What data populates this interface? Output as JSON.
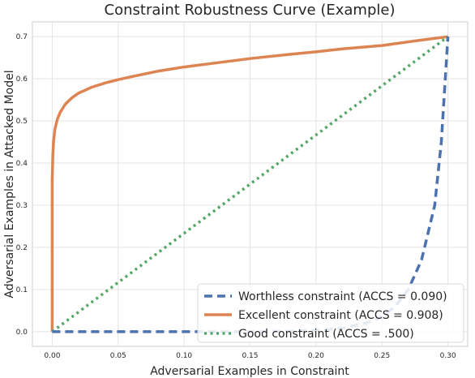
{
  "chart_data": {
    "type": "line",
    "title": "Constraint Robustness Curve (Example)",
    "xlabel": "Adversarial Examples in Constraint",
    "ylabel": "Adversarial Examples in Attacked Model",
    "xlim": [
      -0.015,
      0.315
    ],
    "ylim": [
      -0.035,
      0.735
    ],
    "x_ticks": [
      0.0,
      0.05,
      0.1,
      0.15,
      0.2,
      0.25,
      0.3
    ],
    "x_tick_labels": [
      "0.00",
      "0.05",
      "0.10",
      "0.15",
      "0.20",
      "0.25",
      "0.30"
    ],
    "y_ticks": [
      0.0,
      0.1,
      0.2,
      0.3,
      0.4,
      0.5,
      0.6,
      0.7
    ],
    "y_tick_labels": [
      "0.0",
      "0.1",
      "0.2",
      "0.3",
      "0.4",
      "0.5",
      "0.6",
      "0.7"
    ],
    "grid": true,
    "legend_position": "lower-right",
    "series": [
      {
        "name": "Worthless constraint (ACCS = 0.090)",
        "color": "#4c72b0",
        "style": "dashed",
        "x": [
          0.0,
          0.05,
          0.1,
          0.15,
          0.18,
          0.2,
          0.22,
          0.24,
          0.25,
          0.26,
          0.27,
          0.28,
          0.29,
          0.295,
          0.3
        ],
        "y": [
          0.0,
          0.0,
          0.0,
          0.0,
          0.001,
          0.003,
          0.008,
          0.022,
          0.035,
          0.06,
          0.1,
          0.17,
          0.3,
          0.45,
          0.7
        ]
      },
      {
        "name": "Excellent constraint (ACCS = 0.908)",
        "color": "#dd8452",
        "style": "solid",
        "x": [
          0.0,
          0.0,
          0.0005,
          0.001,
          0.002,
          0.004,
          0.006,
          0.008,
          0.01,
          0.015,
          0.02,
          0.03,
          0.04,
          0.05,
          0.06,
          0.08,
          0.1,
          0.12,
          0.15,
          0.18,
          0.2,
          0.22,
          0.25,
          0.28,
          0.3
        ],
        "y": [
          0.0,
          0.36,
          0.42,
          0.45,
          0.48,
          0.505,
          0.52,
          0.53,
          0.54,
          0.555,
          0.566,
          0.58,
          0.59,
          0.598,
          0.605,
          0.618,
          0.628,
          0.636,
          0.648,
          0.658,
          0.664,
          0.671,
          0.679,
          0.692,
          0.7
        ]
      },
      {
        "name": "Good constraint (ACCS = .500)",
        "color": "#55a868",
        "style": "dotted",
        "x": [
          0.0,
          0.3
        ],
        "y": [
          0.0,
          0.7
        ]
      }
    ]
  }
}
